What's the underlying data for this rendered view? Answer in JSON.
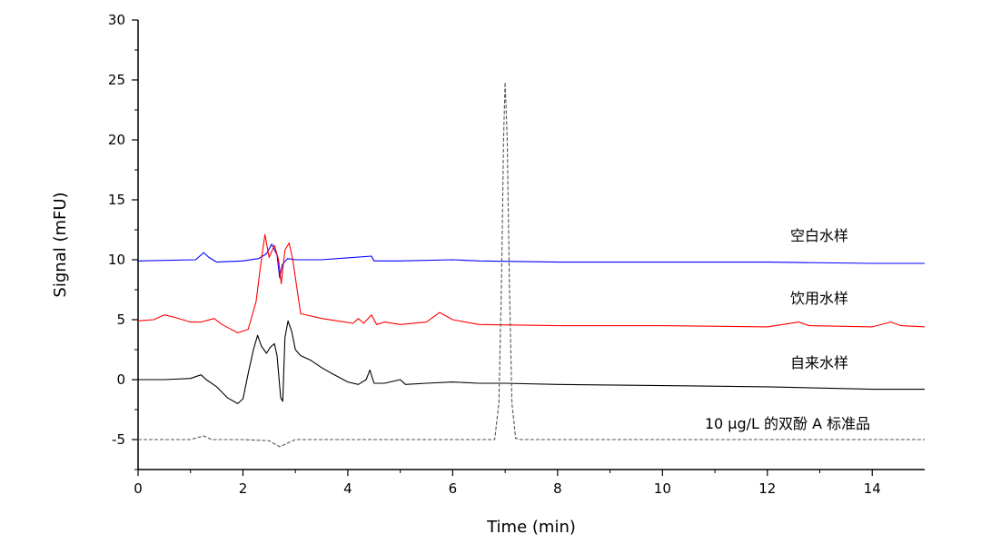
{
  "chart_data": {
    "type": "line",
    "title": "",
    "xlabel": "Time (min)",
    "ylabel": "Signal (mFU)",
    "xlim": [
      0,
      15
    ],
    "ylim": [
      -7.5,
      30
    ],
    "x_ticks": [
      0,
      2,
      4,
      6,
      8,
      10,
      12,
      14
    ],
    "y_ticks": [
      -5,
      0,
      5,
      10,
      15,
      20,
      25,
      30
    ],
    "grid": false,
    "legend": "none",
    "series": [
      {
        "label": "空白水样",
        "color": "#0000ff",
        "dash": "solid",
        "x": [
          0,
          1.1,
          1.25,
          1.35,
          1.5,
          2.0,
          2.3,
          2.45,
          2.55,
          2.65,
          2.7,
          2.75,
          2.85,
          3.0,
          3.5,
          4.45,
          4.5,
          5.0,
          6.0,
          6.5,
          8.0,
          10.0,
          12.0,
          14.0,
          15.0
        ],
        "y": [
          9.9,
          10.0,
          10.6,
          10.2,
          9.8,
          9.9,
          10.1,
          10.5,
          11.3,
          10.4,
          8.5,
          9.6,
          10.1,
          10.0,
          10.0,
          10.3,
          9.9,
          9.9,
          10.0,
          9.9,
          9.8,
          9.8,
          9.8,
          9.7,
          9.7
        ]
      },
      {
        "label": "饮用水样",
        "color": "#ff0000",
        "dash": "solid",
        "x": [
          0,
          0.3,
          0.5,
          0.7,
          1.0,
          1.2,
          1.45,
          1.6,
          1.9,
          2.1,
          2.25,
          2.35,
          2.42,
          2.5,
          2.6,
          2.68,
          2.73,
          2.8,
          2.88,
          2.95,
          3.1,
          3.5,
          3.8,
          4.1,
          4.2,
          4.3,
          4.45,
          4.55,
          4.7,
          5.0,
          5.5,
          5.75,
          6.0,
          6.5,
          8.0,
          10.0,
          12.0,
          12.6,
          12.8,
          14.0,
          14.35,
          14.55,
          15.0
        ],
        "y": [
          4.9,
          5.0,
          5.4,
          5.2,
          4.8,
          4.8,
          5.1,
          4.6,
          3.9,
          4.2,
          6.5,
          10.0,
          12.1,
          10.2,
          11.2,
          10.0,
          8.0,
          10.8,
          11.4,
          10.0,
          5.5,
          5.1,
          4.9,
          4.7,
          5.1,
          4.7,
          5.4,
          4.6,
          4.8,
          4.6,
          4.8,
          5.6,
          5.0,
          4.6,
          4.5,
          4.5,
          4.4,
          4.8,
          4.5,
          4.4,
          4.8,
          4.5,
          4.4
        ]
      },
      {
        "label": "自来水样",
        "color": "#000000",
        "dash": "solid",
        "x": [
          0,
          0.5,
          1.0,
          1.2,
          1.3,
          1.5,
          1.7,
          1.9,
          2.0,
          2.1,
          2.2,
          2.28,
          2.35,
          2.45,
          2.52,
          2.6,
          2.65,
          2.72,
          2.76,
          2.8,
          2.86,
          2.93,
          3.0,
          3.1,
          3.3,
          3.5,
          3.7,
          4.0,
          4.2,
          4.35,
          4.42,
          4.5,
          4.7,
          5.0,
          5.1,
          5.5,
          6.0,
          6.5,
          7.0,
          8.0,
          10.0,
          12.0,
          14.0,
          15.0
        ],
        "y": [
          0.0,
          0.0,
          0.1,
          0.4,
          0.0,
          -0.6,
          -1.5,
          -2.0,
          -1.6,
          0.5,
          2.5,
          3.7,
          2.8,
          2.2,
          2.7,
          3.0,
          2.0,
          -1.5,
          -1.8,
          3.5,
          4.9,
          4.0,
          2.5,
          2.0,
          1.6,
          1.0,
          0.5,
          -0.2,
          -0.4,
          0.0,
          0.8,
          -0.3,
          -0.3,
          0.0,
          -0.4,
          -0.3,
          -0.2,
          -0.3,
          -0.3,
          -0.4,
          -0.5,
          -0.6,
          -0.8,
          -0.8
        ]
      },
      {
        "label": "10 μg/L 的双酚 A 标准品",
        "color": "#555555",
        "dash": "dashed",
        "x": [
          0,
          1.0,
          1.25,
          1.4,
          2.0,
          2.5,
          2.7,
          2.85,
          3.0,
          4.0,
          6.0,
          6.8,
          6.88,
          6.93,
          6.97,
          7.0,
          7.04,
          7.08,
          7.13,
          7.2,
          7.3,
          8.0,
          10.0,
          12.0,
          14.0,
          15.0
        ],
        "y": [
          -5.0,
          -5.0,
          -4.7,
          -5.0,
          -5.0,
          -5.1,
          -5.6,
          -5.3,
          -5.0,
          -5.0,
          -5.0,
          -5.0,
          -2.0,
          8.0,
          20.0,
          24.8,
          20.0,
          8.0,
          -2.0,
          -4.9,
          -5.0,
          -5.0,
          -5.0,
          -5.0,
          -5.0,
          -5.0
        ]
      }
    ]
  }
}
